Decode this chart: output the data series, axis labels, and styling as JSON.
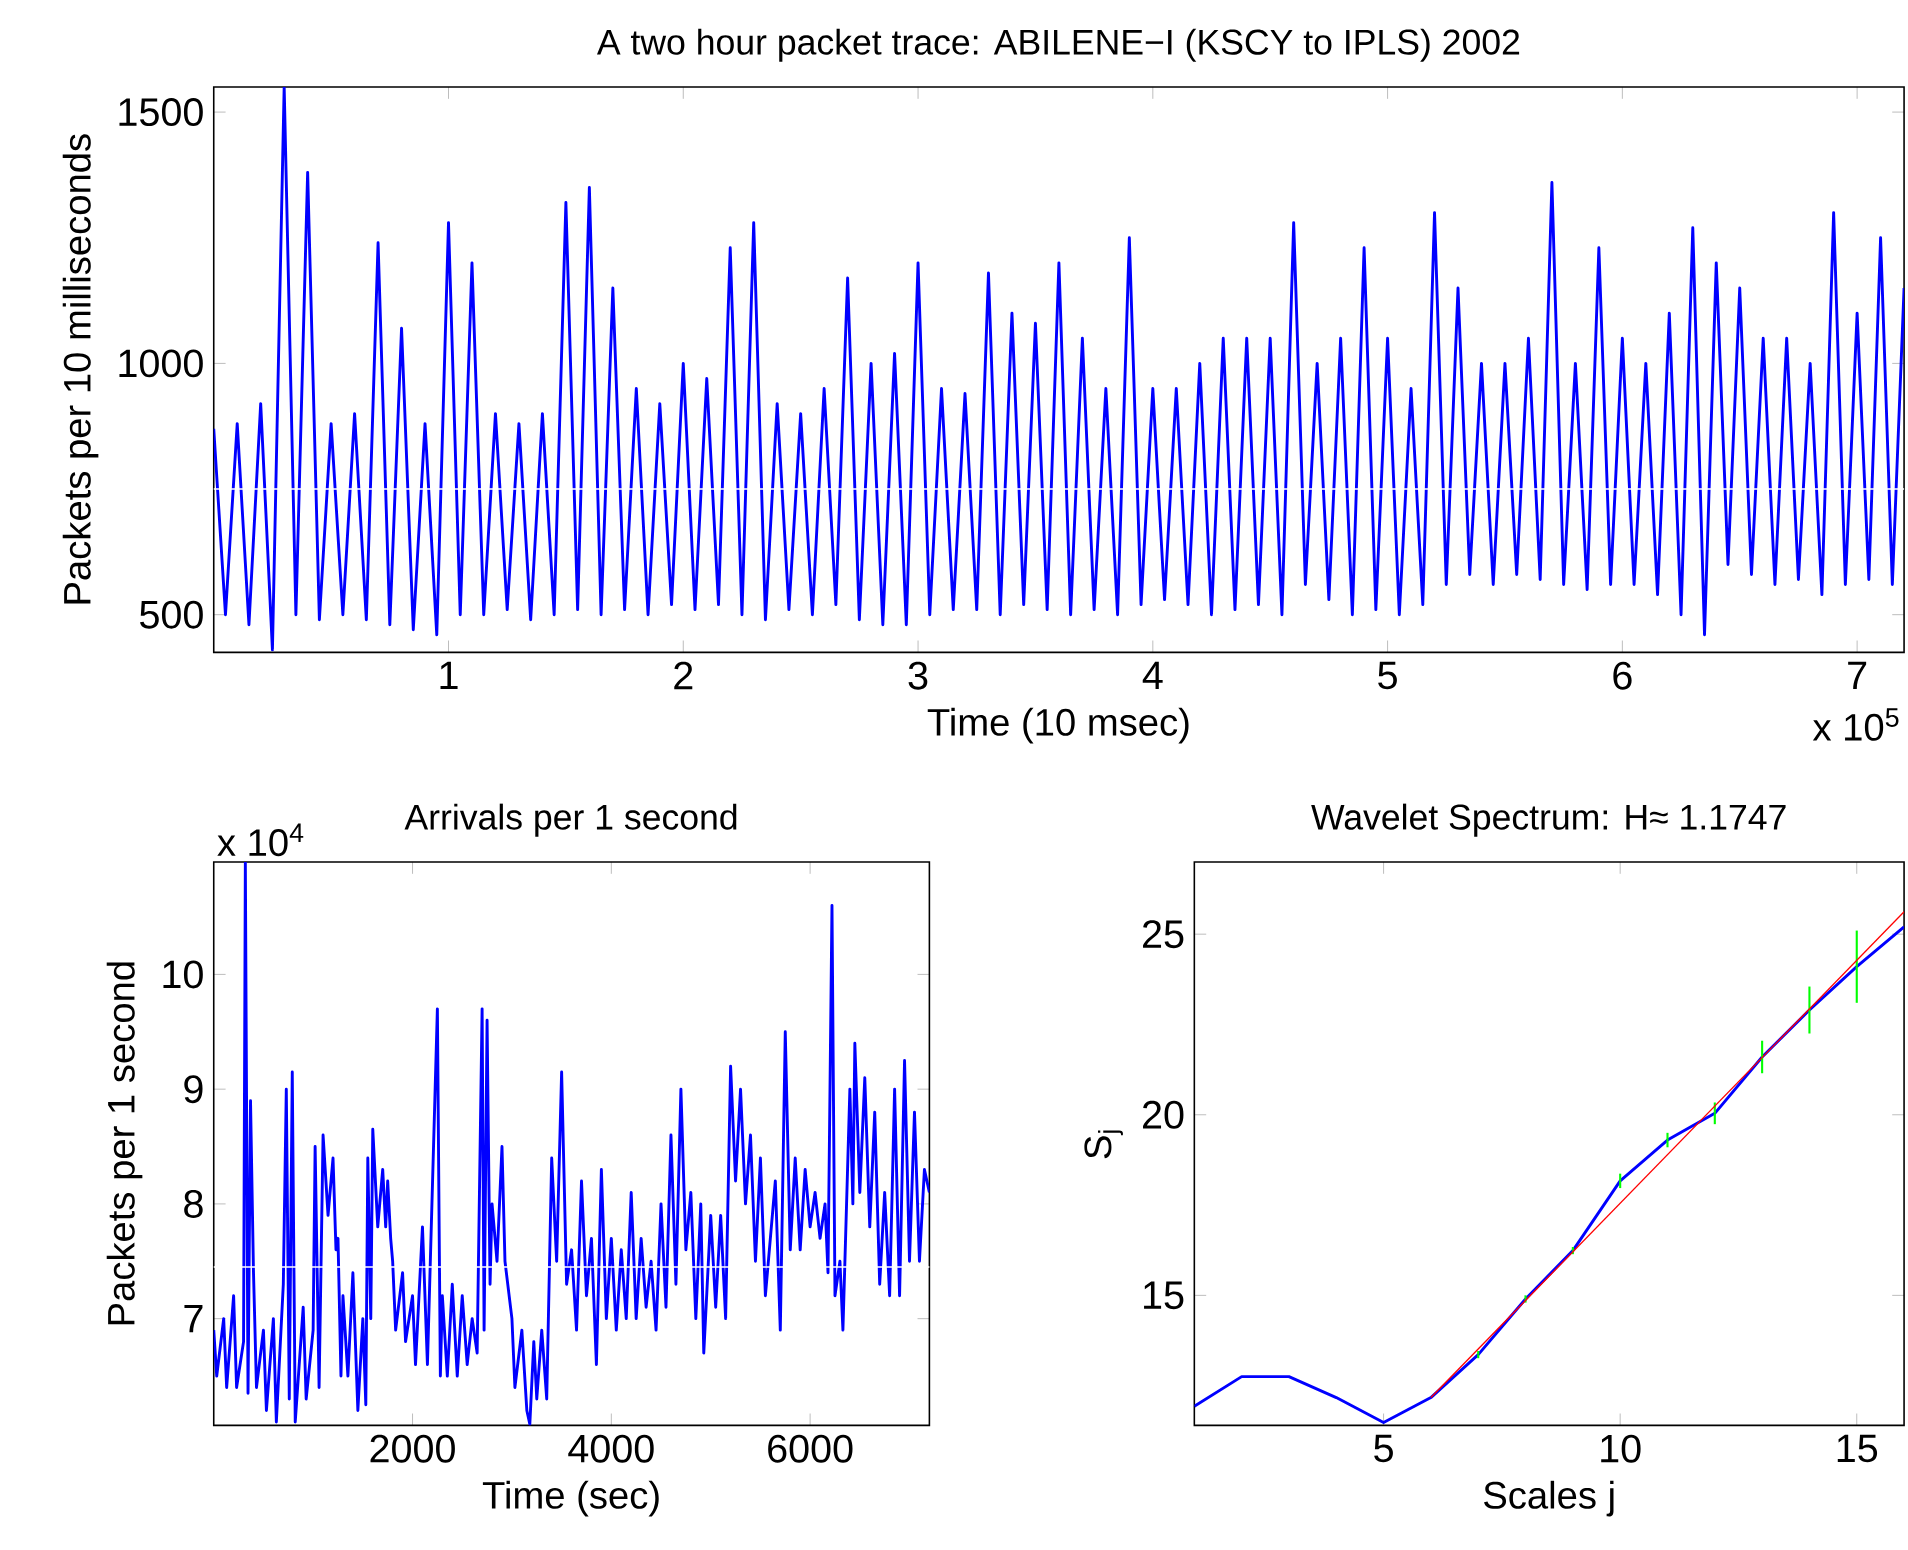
{
  "chart_data": [
    {
      "type": "line",
      "title": "A two hour packet trace: ABILENE−I (KSCY to IPLS) 2002",
      "xlabel": "Time (10 msec)",
      "ylabel": "Packets per 10 milliseconds",
      "annotations": [
        "x 10$^{5}$"
      ],
      "xlim": [
        0,
        7.2
      ],
      "ylim": [
        425,
        1550
      ],
      "xticks": [
        1,
        2,
        3,
        4,
        5,
        6,
        7
      ],
      "yticks": [
        500,
        1000,
        1500
      ],
      "ref_lines": [
        {
          "axis": "y",
          "value": 750,
          "color": "#ffffff"
        }
      ],
      "x": [
        0,
        0.05,
        0.1,
        0.15,
        0.2,
        0.25,
        0.3,
        0.35,
        0.4,
        0.45,
        0.5,
        0.55,
        0.6,
        0.65,
        0.7,
        0.75,
        0.8,
        0.85,
        0.9,
        0.95,
        1.0,
        1.05,
        1.1,
        1.15,
        1.2,
        1.25,
        1.3,
        1.35,
        1.4,
        1.45,
        1.5,
        1.55,
        1.6,
        1.65,
        1.7,
        1.75,
        1.8,
        1.85,
        1.9,
        1.95,
        2.0,
        2.05,
        2.1,
        2.15,
        2.2,
        2.25,
        2.3,
        2.35,
        2.4,
        2.45,
        2.5,
        2.55,
        2.6,
        2.65,
        2.7,
        2.75,
        2.8,
        2.85,
        2.9,
        2.95,
        3.0,
        3.05,
        3.1,
        3.15,
        3.2,
        3.25,
        3.3,
        3.35,
        3.4,
        3.45,
        3.5,
        3.55,
        3.6,
        3.65,
        3.7,
        3.75,
        3.8,
        3.85,
        3.9,
        3.95,
        4.0,
        4.05,
        4.1,
        4.15,
        4.2,
        4.25,
        4.3,
        4.35,
        4.4,
        4.45,
        4.5,
        4.55,
        4.6,
        4.65,
        4.7,
        4.75,
        4.8,
        4.85,
        4.9,
        4.95,
        5.0,
        5.05,
        5.1,
        5.15,
        5.2,
        5.25,
        5.3,
        5.35,
        5.4,
        5.45,
        5.5,
        5.55,
        5.6,
        5.65,
        5.7,
        5.75,
        5.8,
        5.85,
        5.9,
        5.95,
        6.0,
        6.05,
        6.1,
        6.15,
        6.2,
        6.25,
        6.3,
        6.35,
        6.4,
        6.45,
        6.5,
        6.55,
        6.6,
        6.65,
        6.7,
        6.75,
        6.8,
        6.85,
        6.9,
        6.95,
        7.0,
        7.05,
        7.1,
        7.15,
        7.2
      ],
      "series": [
        {
          "color": "#0000ff",
          "values": [
            870,
            500,
            880,
            480,
            920,
            430,
            1550,
            500,
            1380,
            490,
            880,
            500,
            900,
            490,
            1240,
            480,
            1070,
            470,
            880,
            460,
            1280,
            500,
            1200,
            500,
            900,
            510,
            880,
            490,
            900,
            500,
            1320,
            510,
            1350,
            500,
            1150,
            510,
            950,
            500,
            920,
            520,
            1000,
            510,
            970,
            520,
            1230,
            500,
            1280,
            490,
            920,
            510,
            900,
            500,
            950,
            520,
            1170,
            490,
            1000,
            480,
            1020,
            480,
            1200,
            500,
            950,
            510,
            940,
            510,
            1180,
            500,
            1100,
            520,
            1080,
            510,
            1200,
            500,
            1050,
            510,
            950,
            500,
            1250,
            520,
            950,
            530,
            950,
            520,
            1000,
            500,
            1050,
            510,
            1050,
            520,
            1050,
            500,
            1280,
            560,
            1000,
            530,
            1050,
            500,
            1230,
            510,
            1050,
            500,
            950,
            520,
            1300,
            560,
            1150,
            580,
            1000,
            560,
            1000,
            580,
            1050,
            570,
            1360,
            560,
            1000,
            550,
            1230,
            560,
            1050,
            560,
            1000,
            540,
            1100,
            500,
            1270,
            460,
            1200,
            600,
            1150,
            580,
            1050,
            560,
            1050,
            570,
            1000,
            540,
            1300,
            560,
            1100,
            570,
            1250,
            560,
            1150
          ]
        }
      ]
    },
    {
      "type": "line",
      "title": "Arrivals per 1 second",
      "xlabel": "Time (sec)",
      "ylabel": "Packets per 1 second",
      "annotations": [
        "x 10$^{4}$"
      ],
      "xlim": [
        0,
        7200
      ],
      "ylim": [
        6.07,
        10.98
      ],
      "xticks": [
        2000,
        4000,
        6000
      ],
      "yticks": [
        7,
        8,
        9,
        10
      ],
      "ref_lines": [
        {
          "axis": "y",
          "value": 7.45,
          "color": "#ffffff"
        }
      ],
      "x": [
        0,
        30,
        100,
        130,
        200,
        230,
        300,
        318,
        345,
        370,
        400,
        430,
        500,
        530,
        600,
        630,
        700,
        730,
        760,
        790,
        820,
        900,
        930,
        1000,
        1020,
        1060,
        1100,
        1150,
        1200,
        1230,
        1250,
        1280,
        1300,
        1350,
        1400,
        1450,
        1500,
        1530,
        1550,
        1580,
        1600,
        1650,
        1700,
        1730,
        1750,
        1780,
        1800,
        1830,
        1900,
        1930,
        2000,
        2030,
        2100,
        2150,
        2250,
        2280,
        2300,
        2350,
        2400,
        2450,
        2500,
        2550,
        2600,
        2650,
        2700,
        2720,
        2750,
        2780,
        2800,
        2850,
        2900,
        2930,
        3000,
        3030,
        3100,
        3150,
        3180,
        3220,
        3250,
        3300,
        3350,
        3400,
        3450,
        3500,
        3550,
        3600,
        3650,
        3700,
        3750,
        3800,
        3850,
        3900,
        3950,
        4000,
        4050,
        4100,
        4150,
        4200,
        4250,
        4300,
        4350,
        4400,
        4450,
        4500,
        4550,
        4600,
        4650,
        4700,
        4750,
        4800,
        4850,
        4900,
        4930,
        5000,
        5050,
        5100,
        5150,
        5200,
        5250,
        5300,
        5350,
        5400,
        5450,
        5500,
        5550,
        5650,
        5700,
        5750,
        5800,
        5850,
        5900,
        5950,
        6000,
        6050,
        6100,
        6150,
        6180,
        6220,
        6250,
        6300,
        6330,
        6400,
        6430,
        6450,
        6500,
        6550,
        6600,
        6650,
        6700,
        6750,
        6800,
        6850,
        6900,
        6950,
        7000,
        7050,
        7100,
        7150,
        7200
      ],
      "series": [
        {
          "color": "#0000ff",
          "values": [
            6.9,
            6.5,
            7.0,
            6.4,
            7.2,
            6.4,
            6.8,
            10.98,
            6.35,
            8.9,
            7.4,
            6.4,
            6.9,
            6.2,
            7.0,
            6.1,
            7.3,
            9.0,
            6.3,
            9.15,
            6.1,
            7.1,
            6.3,
            6.9,
            8.5,
            6.4,
            8.6,
            7.9,
            8.4,
            7.6,
            7.7,
            6.5,
            7.2,
            6.5,
            7.4,
            6.2,
            7.0,
            6.25,
            8.4,
            7.0,
            8.65,
            7.8,
            8.3,
            7.8,
            8.2,
            7.7,
            7.5,
            6.9,
            7.4,
            6.8,
            7.2,
            6.6,
            7.8,
            6.6,
            9.7,
            6.5,
            7.2,
            6.5,
            7.3,
            6.5,
            7.2,
            6.6,
            7.0,
            6.7,
            9.7,
            6.9,
            9.6,
            7.3,
            8.0,
            7.5,
            8.5,
            7.5,
            7.0,
            6.4,
            6.9,
            6.2,
            6.08,
            6.8,
            6.3,
            6.9,
            6.3,
            8.4,
            7.5,
            9.15,
            7.3,
            7.6,
            6.9,
            8.2,
            7.2,
            7.7,
            6.6,
            8.3,
            7.0,
            7.7,
            6.9,
            7.6,
            7.0,
            8.1,
            7.0,
            7.7,
            7.1,
            7.5,
            6.9,
            8.0,
            7.1,
            8.6,
            7.3,
            9.0,
            7.6,
            8.1,
            7.0,
            8.0,
            6.7,
            7.9,
            7.1,
            7.9,
            7.0,
            9.2,
            8.2,
            9.0,
            8.0,
            8.6,
            7.5,
            8.4,
            7.2,
            8.2,
            6.9,
            9.5,
            7.6,
            8.4,
            7.6,
            8.3,
            7.8,
            8.1,
            7.7,
            8.0,
            7.4,
            10.6,
            7.2,
            7.5,
            6.9,
            9.0,
            8.0,
            9.4,
            8.1,
            9.1,
            7.8,
            8.8,
            7.3,
            8.1,
            7.2,
            9.0,
            7.2,
            9.25,
            7.5,
            8.8,
            7.5,
            8.3,
            8.1
          ]
        }
      ]
    },
    {
      "type": "line",
      "title": "Wavelet Spectrum: H≈ 1.1747",
      "xlabel": "Scales j",
      "ylabel": "S$_{j}$",
      "xlim": [
        1,
        16
      ],
      "ylim": [
        11.4,
        27
      ],
      "xticks": [
        5,
        10,
        15
      ],
      "yticks": [
        15,
        20,
        25
      ],
      "x": [
        1,
        2,
        3,
        4,
        5,
        6,
        7,
        8,
        9,
        10,
        11,
        12,
        13,
        14,
        15,
        16
      ],
      "series": [
        {
          "color": "#0000ff",
          "values": [
            11.93,
            12.75,
            12.75,
            12.17,
            11.48,
            12.17,
            13.36,
            14.9,
            16.24,
            18.17,
            19.3,
            20.04,
            21.6,
            22.9,
            24.1,
            25.2
          ],
          "errors": [
            null,
            null,
            null,
            null,
            null,
            null,
            0.1,
            0.1,
            0.1,
            0.2,
            0.2,
            0.3,
            0.45,
            0.65,
            1.0,
            null
          ]
        },
        {
          "color": "#ff0000",
          "x": [
            6,
            16
          ],
          "values": [
            12.17,
            25.62
          ]
        }
      ]
    }
  ]
}
